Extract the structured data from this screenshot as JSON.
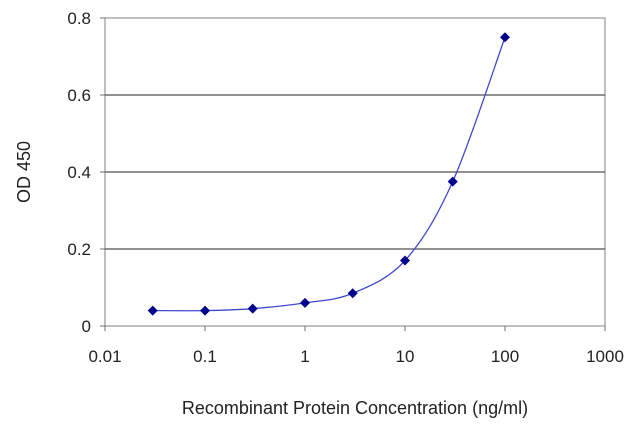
{
  "chart_data": {
    "type": "line",
    "title": "",
    "xlabel": "Recombinant Protein Concentration (ng/ml)",
    "ylabel": "OD 450",
    "x_scale": "log",
    "xlim": [
      0.01,
      1000
    ],
    "ylim": [
      0,
      0.8
    ],
    "x_ticks": [
      0.01,
      0.1,
      1,
      10,
      100,
      1000
    ],
    "x_tick_labels": [
      "0.01",
      "0.1",
      "1",
      "10",
      "100",
      "1000"
    ],
    "y_ticks": [
      0,
      0.2,
      0.4,
      0.6,
      0.8
    ],
    "y_tick_labels": [
      "0",
      "0.2",
      "0.4",
      "0.6",
      "0.8"
    ],
    "grid": "horizontal",
    "legend": "none",
    "series": [
      {
        "x": [
          0.03,
          0.1,
          0.3,
          1,
          3,
          10,
          30,
          100
        ],
        "y": [
          0.04,
          0.04,
          0.045,
          0.06,
          0.085,
          0.17,
          0.375,
          0.75
        ],
        "color": "#00008b",
        "line_color": "#3f48cc",
        "marker": "diamond"
      }
    ]
  }
}
